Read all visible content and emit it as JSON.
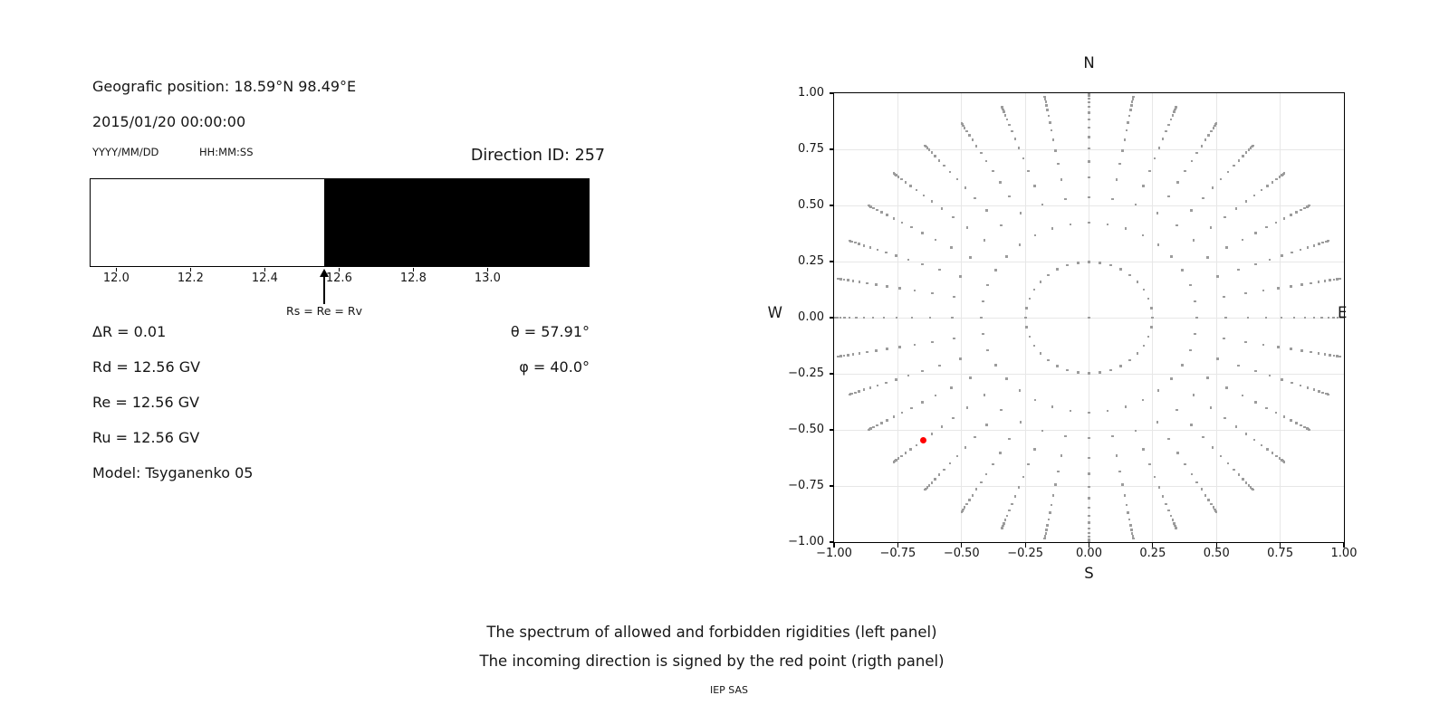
{
  "info_panel": {
    "geographic_position": "Geografic position: 18.59°N 98.49°E",
    "datetime": "2015/01/20 00:00:00",
    "date_format": "YYYY/MM/DD",
    "time_format": "HH:MM:SS",
    "direction_id": "Direction ID: 257",
    "parameters_left": [
      "ΔR = 0.01",
      "Rd = 12.56 GV",
      "Re = 12.56 GV",
      "Ru = 12.56 GV",
      "Model: Tsyganenko 05"
    ],
    "parameters_right": [
      "θ = 57.91°",
      "φ = 40.0°"
    ]
  },
  "captions": {
    "line1": "The spectrum of allowed and forbidden rigidities (left panel)",
    "line2": "The incoming direction is signed by the red point (rigth panel)",
    "credit": "IEP SAS"
  },
  "colors": {
    "allowed_white": "#ffffff",
    "forbidden_black": "#000000",
    "dot_gray": "#9c9c9c",
    "red_point": "#ff0000",
    "gridline": "#e7e7e7"
  },
  "chart_data": [
    {
      "type": "bar",
      "title": "Rigidity spectrum strip: white = allowed, black = forbidden rigidities (GV)",
      "x_range": [
        11.932,
        13.271
      ],
      "x_ticks": [
        12.0,
        12.2,
        12.4,
        12.6,
        12.8,
        13.0
      ],
      "x_tick_labels": [
        "12.0",
        "12.2",
        "12.4",
        "12.6",
        "12.8",
        "13.0"
      ],
      "regions": [
        {
          "name": "allowed",
          "from": 11.932,
          "to": 12.56,
          "color_key": "allowed_white"
        },
        {
          "name": "forbidden",
          "from": 12.56,
          "to": 13.271,
          "color_key": "forbidden_black"
        }
      ],
      "annotation": {
        "text": "Rs = Re = Rv",
        "x": 12.56
      }
    },
    {
      "type": "scatter",
      "title_north": "N",
      "xlabel_south": "S",
      "label_west": "W",
      "label_east": "E",
      "xlim": [
        -1.0,
        1.0
      ],
      "ylim": [
        -1.0,
        1.0
      ],
      "grid": true,
      "x_ticks": [
        -1.0,
        -0.75,
        -0.5,
        -0.25,
        0.0,
        0.25,
        0.5,
        0.75,
        1.0
      ],
      "x_tick_labels": [
        "−1.00",
        "−0.75",
        "−0.50",
        "−0.25",
        "0.00",
        "0.25",
        "0.50",
        "0.75",
        "1.00"
      ],
      "y_ticks": [
        1.0,
        0.75,
        0.5,
        0.25,
        0.0,
        -0.25,
        -0.5,
        -0.75,
        -1.0
      ],
      "y_tick_labels": [
        "1.00",
        "0.75",
        "0.50",
        "0.25",
        "0.00",
        "−0.25",
        "−0.50",
        "−0.75",
        "−1.00"
      ],
      "series": [
        {
          "name": "direction-grid",
          "marker": "square",
          "color_key": "dot_gray",
          "azimuth_start_deg": 0,
          "azimuth_step_deg": 10,
          "azimuth_count": 36,
          "zenith_cosines": [
            0.03125,
            0.09375,
            0.15625,
            0.21875,
            0.28125,
            0.34375,
            0.40625,
            0.46875,
            0.53125,
            0.59375,
            0.65625,
            0.71875,
            0.78125,
            0.84375,
            0.90625,
            0.96875
          ],
          "radius_rule": "r = sqrt(1 - cos^2) = sin(zenith), equal solid-angle bins",
          "includes_center_point": true
        },
        {
          "name": "incoming-direction",
          "marker": "circle",
          "color_key": "red_point",
          "points": [
            [
              -0.649,
              -0.5446
            ]
          ],
          "polar": {
            "plot_angle_deg": 220,
            "radius": 0.8472
          }
        }
      ]
    }
  ]
}
